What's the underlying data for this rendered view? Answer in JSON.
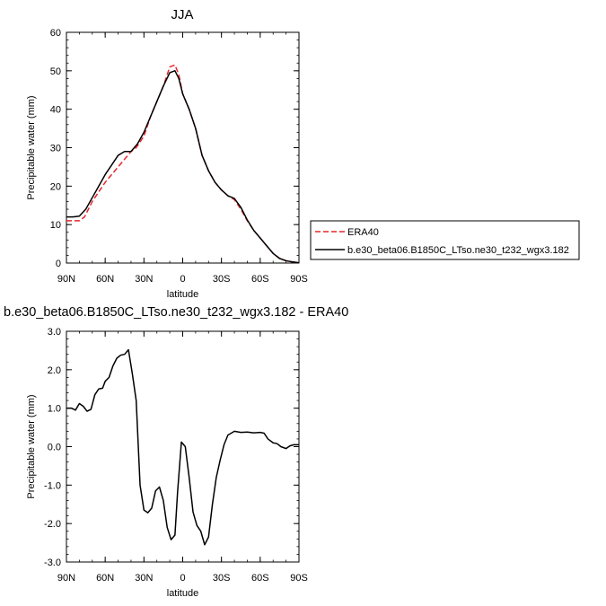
{
  "chart_data": [
    {
      "type": "line",
      "title": "JJA",
      "xlabel": "latitude",
      "ylabel": "Precipitable water (mm)",
      "xlim": [
        90,
        -90
      ],
      "ylim": [
        0,
        60
      ],
      "xticks": [
        90,
        60,
        30,
        0,
        -30,
        -60,
        -90
      ],
      "xtick_labels": [
        "90N",
        "60N",
        "30N",
        "0",
        "30S",
        "60S",
        "90S"
      ],
      "yticks": [
        0,
        10,
        20,
        30,
        40,
        50,
        60
      ],
      "ytick_labels": [
        "0",
        "10",
        "20",
        "30",
        "40",
        "50",
        "60"
      ],
      "grid": false,
      "legend_placement": "right",
      "series": [
        {
          "name": "ERA40",
          "color": "#e8262a",
          "dash": "dashed",
          "x": [
            90,
            80,
            76,
            70,
            60,
            50,
            40,
            36,
            30,
            25,
            20,
            15,
            10,
            6,
            3,
            0,
            -5,
            -10,
            -15,
            -20,
            -25,
            -30,
            -35,
            -40,
            -45,
            -50,
            -55,
            -60,
            -65,
            -70,
            -75,
            -80,
            -85,
            -90
          ],
          "y": [
            11,
            11,
            12,
            16,
            21,
            25,
            29,
            30,
            33,
            38,
            42,
            46,
            51,
            51.5,
            49,
            44,
            40,
            35,
            28,
            24,
            21,
            19,
            17.5,
            16.5,
            14,
            11,
            8.5,
            6.5,
            4.5,
            2.5,
            1.2,
            0.6,
            0.3,
            0.1
          ]
        },
        {
          "name": "b.e30_beta06.B1850C_LTso.ne30_t232_wgx3.182",
          "color": "#000000",
          "dash": "solid",
          "x": [
            90,
            85,
            80,
            75,
            70,
            65,
            60,
            55,
            50,
            45,
            42,
            40,
            35,
            30,
            25,
            20,
            15,
            10,
            6,
            3,
            0,
            -5,
            -10,
            -15,
            -20,
            -25,
            -30,
            -35,
            -40,
            -45,
            -50,
            -55,
            -60,
            -65,
            -70,
            -75,
            -80,
            -85,
            -90
          ],
          "y": [
            12,
            12,
            12.2,
            14,
            17,
            20,
            23,
            25.5,
            28,
            29,
            29,
            29,
            31,
            34,
            38,
            42,
            46,
            49.5,
            50,
            48,
            44,
            40,
            35,
            28,
            24,
            21,
            19,
            17.5,
            16.8,
            14.5,
            11.2,
            8.5,
            6.5,
            4.5,
            2.5,
            1.2,
            0.6,
            0.3,
            0.1
          ]
        }
      ]
    },
    {
      "type": "line",
      "title": "b.e30_beta06.B1850C_LTso.ne30_t232_wgx3.182 - ERA40",
      "xlabel": "latitude",
      "ylabel": "Precipitable water (mm)",
      "xlim": [
        90,
        -90
      ],
      "ylim": [
        -3,
        3
      ],
      "xticks": [
        90,
        60,
        30,
        0,
        -30,
        -60,
        -90
      ],
      "xtick_labels": [
        "90N",
        "60N",
        "30N",
        "0",
        "30S",
        "60S",
        "90S"
      ],
      "yticks": [
        -3,
        -2,
        -1,
        0,
        1,
        2,
        3
      ],
      "ytick_labels": [
        "-3.0",
        "-2.0",
        "-1.0",
        "0.0",
        "1.0",
        "2.0",
        "3.0"
      ],
      "grid": false,
      "series": [
        {
          "color": "#000000",
          "dash": "solid",
          "x": [
            90,
            86,
            83,
            80,
            77,
            74,
            71,
            68,
            65,
            62,
            60,
            57,
            54,
            51,
            48,
            45,
            42,
            39,
            36,
            33,
            30,
            27,
            24,
            21,
            18,
            15,
            12,
            9,
            6,
            4,
            1,
            -2,
            -5,
            -8,
            -11,
            -14,
            -17,
            -20,
            -23,
            -26,
            -29,
            -32,
            -35,
            -40,
            -45,
            -50,
            -55,
            -60,
            -63,
            -66,
            -70,
            -73,
            -76,
            -80,
            -83,
            -86,
            -90
          ],
          "y": [
            1.0,
            1.0,
            0.95,
            1.12,
            1.05,
            0.92,
            0.97,
            1.35,
            1.5,
            1.52,
            1.7,
            1.8,
            2.1,
            2.3,
            2.38,
            2.4,
            2.52,
            1.9,
            1.2,
            -1.0,
            -1.65,
            -1.72,
            -1.6,
            -1.15,
            -1.05,
            -1.4,
            -2.1,
            -2.42,
            -2.3,
            -1.2,
            0.12,
            0.0,
            -0.8,
            -1.7,
            -2.05,
            -2.2,
            -2.55,
            -2.35,
            -1.5,
            -0.8,
            -0.35,
            0.05,
            0.3,
            0.4,
            0.37,
            0.38,
            0.36,
            0.37,
            0.35,
            0.2,
            0.1,
            0.08,
            0.0,
            -0.05,
            0.02,
            0.05,
            0.05
          ]
        }
      ]
    }
  ]
}
